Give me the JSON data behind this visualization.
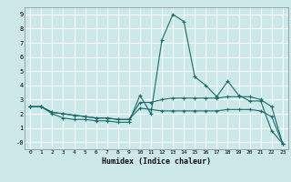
{
  "xlabel": "Humidex (Indice chaleur)",
  "ylabel": "",
  "bg_color": "#cce8e8",
  "grid_color": "#ffffff",
  "line_color": "#1a6b6b",
  "xlim": [
    -0.5,
    23.5
  ],
  "ylim": [
    -0.5,
    9.5
  ],
  "xticks": [
    0,
    1,
    2,
    3,
    4,
    5,
    6,
    7,
    8,
    9,
    10,
    11,
    12,
    13,
    14,
    15,
    16,
    17,
    18,
    19,
    20,
    21,
    22,
    23
  ],
  "yticks": [
    0,
    1,
    2,
    3,
    4,
    5,
    6,
    7,
    8,
    9
  ],
  "ytick_labels": [
    "-0",
    "1",
    "2",
    "3",
    "4",
    "5",
    "6",
    "7",
    "8",
    "9"
  ],
  "series": [
    {
      "x": [
        0,
        1,
        2,
        3,
        4,
        5,
        6,
        7,
        8,
        9,
        10,
        11,
        12,
        13,
        14,
        15,
        16,
        17,
        18,
        19,
        20,
        21,
        22,
        23
      ],
      "y": [
        2.5,
        2.5,
        2.0,
        1.7,
        1.6,
        1.6,
        1.5,
        1.5,
        1.4,
        1.4,
        3.3,
        2.0,
        7.2,
        9.0,
        8.5,
        4.6,
        4.0,
        3.2,
        4.3,
        3.3,
        2.9,
        2.9,
        0.8,
        -0.1
      ]
    },
    {
      "x": [
        0,
        1,
        2,
        3,
        4,
        5,
        6,
        7,
        8,
        9,
        10,
        11,
        12,
        13,
        14,
        15,
        16,
        17,
        18,
        19,
        20,
        21,
        22,
        23
      ],
      "y": [
        2.5,
        2.5,
        2.1,
        2.0,
        1.9,
        1.8,
        1.7,
        1.7,
        1.6,
        1.6,
        2.8,
        2.8,
        3.0,
        3.1,
        3.1,
        3.1,
        3.1,
        3.1,
        3.2,
        3.2,
        3.2,
        3.0,
        2.5,
        -0.1
      ]
    },
    {
      "x": [
        0,
        1,
        2,
        3,
        4,
        5,
        6,
        7,
        8,
        9,
        10,
        11,
        12,
        13,
        14,
        15,
        16,
        17,
        18,
        19,
        20,
        21,
        22,
        23
      ],
      "y": [
        2.5,
        2.5,
        2.1,
        2.0,
        1.9,
        1.8,
        1.7,
        1.7,
        1.6,
        1.6,
        2.4,
        2.3,
        2.2,
        2.2,
        2.2,
        2.2,
        2.2,
        2.2,
        2.3,
        2.3,
        2.3,
        2.2,
        1.8,
        -0.1
      ]
    }
  ]
}
